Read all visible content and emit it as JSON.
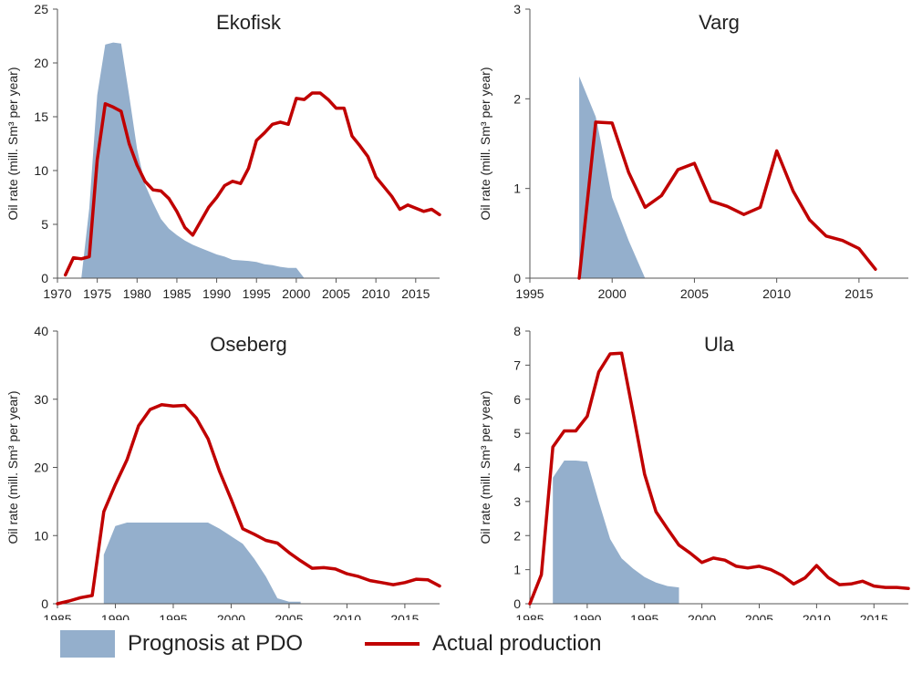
{
  "colors": {
    "prognosis": "#94afcc",
    "actual": "#c00000",
    "axis": "#555555",
    "text": "#222222"
  },
  "legend": {
    "prognosis_label": "Prognosis at PDO",
    "actual_label": "Actual production"
  },
  "chart_data": [
    {
      "type": "area",
      "title": "Ekofisk",
      "ylabel": "Oil rate (mill. Sm³ per year)",
      "xlim": [
        1970,
        2018
      ],
      "ylim": [
        0,
        25
      ],
      "xticks": [
        1970,
        1975,
        1980,
        1985,
        1990,
        1995,
        2000,
        2005,
        2010,
        2015
      ],
      "yticks": [
        0,
        5,
        10,
        15,
        20,
        25
      ],
      "series": [
        {
          "name": "Prognosis at PDO",
          "kind": "area",
          "x": [
            1973,
            1974,
            1975,
            1976,
            1977,
            1978,
            1979,
            1980,
            1981,
            1982,
            1983,
            1984,
            1985,
            1986,
            1987,
            1988,
            1989,
            1990,
            1991,
            1992,
            1993,
            1994,
            1995,
            1996,
            1997,
            1998,
            1999,
            2000,
            2001
          ],
          "y": [
            0,
            6.5,
            17,
            21.7,
            21.9,
            21.8,
            17,
            12,
            8.7,
            7,
            5.5,
            4.6,
            4,
            3.5,
            3.1,
            2.8,
            2.5,
            2.2,
            2,
            1.7,
            1.65,
            1.6,
            1.5,
            1.3,
            1.2,
            1.05,
            0.95,
            0.95,
            0
          ]
        },
        {
          "name": "Actual production",
          "kind": "line",
          "x": [
            1971,
            1972,
            1973,
            1974,
            1975,
            1976,
            1977,
            1978,
            1979,
            1980,
            1981,
            1982,
            1983,
            1984,
            1985,
            1986,
            1987,
            1988,
            1989,
            1990,
            1991,
            1992,
            1993,
            1994,
            1995,
            1996,
            1997,
            1998,
            1999,
            2000,
            2001,
            2002,
            2003,
            2004,
            2005,
            2006,
            2007,
            2008,
            2009,
            2010,
            2011,
            2012,
            2013,
            2014,
            2015,
            2016,
            2017,
            2018
          ],
          "y": [
            0.3,
            1.9,
            1.8,
            2.0,
            11.0,
            16.2,
            15.9,
            15.5,
            12.5,
            10.5,
            9.0,
            8.2,
            8.1,
            7.4,
            6.2,
            4.7,
            4.0,
            5.3,
            6.6,
            7.5,
            8.6,
            9.0,
            8.8,
            10.2,
            12.8,
            13.5,
            14.3,
            14.5,
            14.3,
            16.7,
            16.6,
            17.2,
            17.2,
            16.6,
            15.8,
            15.8,
            13.2,
            12.3,
            11.3,
            9.4,
            8.5,
            7.6,
            6.4,
            6.8,
            6.5,
            6.2,
            6.4,
            5.9
          ]
        }
      ]
    },
    {
      "type": "area",
      "title": "Varg",
      "ylabel": "Oil rate (mill. Sm³ per year)",
      "xlim": [
        1995,
        2018
      ],
      "ylim": [
        0,
        3
      ],
      "xticks": [
        1995,
        2000,
        2005,
        2010,
        2015
      ],
      "yticks": [
        0,
        1,
        2,
        3
      ],
      "series": [
        {
          "name": "Prognosis at PDO",
          "kind": "area",
          "x": [
            1998,
            1998,
            1999,
            2000,
            2001,
            2002
          ],
          "y": [
            0,
            2.25,
            1.8,
            0.9,
            0.42,
            0
          ]
        },
        {
          "name": "Actual production",
          "kind": "line",
          "x": [
            1998,
            1999,
            2000,
            2001,
            2002,
            2003,
            2004,
            2005,
            2006,
            2007,
            2008,
            2009,
            2010,
            2011,
            2012,
            2013,
            2014,
            2015,
            2016
          ],
          "y": [
            0,
            1.74,
            1.73,
            1.18,
            0.79,
            0.92,
            1.21,
            1.28,
            0.86,
            0.8,
            0.71,
            0.79,
            1.42,
            0.97,
            0.65,
            0.47,
            0.42,
            0.33,
            0.1
          ]
        }
      ]
    },
    {
      "type": "area",
      "title": "Oseberg",
      "ylabel": "Oil rate (mill. Sm³ per year)",
      "xlim": [
        1985,
        2018
      ],
      "ylim": [
        0,
        40
      ],
      "xticks": [
        1985,
        1990,
        1995,
        2000,
        2005,
        2010,
        2015
      ],
      "yticks": [
        0,
        10,
        20,
        30,
        40
      ],
      "series": [
        {
          "name": "Prognosis at PDO",
          "kind": "area",
          "x": [
            1989,
            1989,
            1990,
            1991,
            1992,
            1993,
            1994,
            1995,
            1996,
            1997,
            1998,
            1999,
            2000,
            2001,
            2002,
            2003,
            2004,
            2005,
            2006,
            2006
          ],
          "y": [
            0,
            7.2,
            11.4,
            11.9,
            11.9,
            11.9,
            11.9,
            11.9,
            11.9,
            11.9,
            11.9,
            11.0,
            9.9,
            8.8,
            6.6,
            4.0,
            0.8,
            0.3,
            0.3,
            0
          ]
        },
        {
          "name": "Actual production",
          "kind": "line",
          "x": [
            1985,
            1986,
            1987,
            1988,
            1989,
            1990,
            1991,
            1992,
            1993,
            1994,
            1995,
            1996,
            1997,
            1998,
            1999,
            2000,
            2001,
            2002,
            2003,
            2004,
            2005,
            2006,
            2007,
            2008,
            2009,
            2010,
            2011,
            2012,
            2013,
            2014,
            2015,
            2016,
            2017,
            2018
          ],
          "y": [
            0,
            0.4,
            0.9,
            1.2,
            13.5,
            17.5,
            21.1,
            26.1,
            28.5,
            29.2,
            29.0,
            29.1,
            27.2,
            24.2,
            19.4,
            15.3,
            11.0,
            10.2,
            9.3,
            8.9,
            7.5,
            6.3,
            5.2,
            5.3,
            5.1,
            4.4,
            4.0,
            3.4,
            3.1,
            2.8,
            3.1,
            3.6,
            3.5,
            2.6
          ]
        }
      ]
    },
    {
      "type": "area",
      "title": "Ula",
      "ylabel": "Oil rate (mill. Sm³ per year)",
      "xlim": [
        1985,
        2018
      ],
      "ylim": [
        0,
        8
      ],
      "xticks": [
        1985,
        1990,
        1995,
        2000,
        2005,
        2010,
        2015
      ],
      "yticks": [
        0,
        1,
        2,
        3,
        4,
        5,
        6,
        7,
        8
      ],
      "series": [
        {
          "name": "Prognosis at PDO",
          "kind": "area",
          "x": [
            1987,
            1987,
            1988,
            1989,
            1990,
            1991,
            1992,
            1993,
            1994,
            1995,
            1996,
            1997,
            1998,
            1998
          ],
          "y": [
            0,
            3.7,
            4.2,
            4.2,
            4.17,
            3.0,
            1.9,
            1.33,
            1.03,
            0.78,
            0.62,
            0.52,
            0.48,
            0
          ]
        },
        {
          "name": "Actual production",
          "kind": "line",
          "x": [
            1985,
            1986,
            1987,
            1988,
            1989,
            1990,
            1991,
            1992,
            1993,
            1994,
            1995,
            1996,
            1997,
            1998,
            1999,
            2000,
            2001,
            2002,
            2003,
            2004,
            2005,
            2006,
            2007,
            2008,
            2009,
            2010,
            2011,
            2012,
            2013,
            2014,
            2015,
            2016,
            2017,
            2018
          ],
          "y": [
            0,
            0.85,
            4.6,
            5.07,
            5.07,
            5.5,
            6.8,
            7.33,
            7.35,
            5.6,
            3.8,
            2.7,
            2.2,
            1.72,
            1.48,
            1.21,
            1.34,
            1.28,
            1.1,
            1.05,
            1.1,
            1.0,
            0.83,
            0.58,
            0.76,
            1.12,
            0.77,
            0.56,
            0.58,
            0.66,
            0.52,
            0.48,
            0.48,
            0.45
          ]
        }
      ]
    }
  ]
}
